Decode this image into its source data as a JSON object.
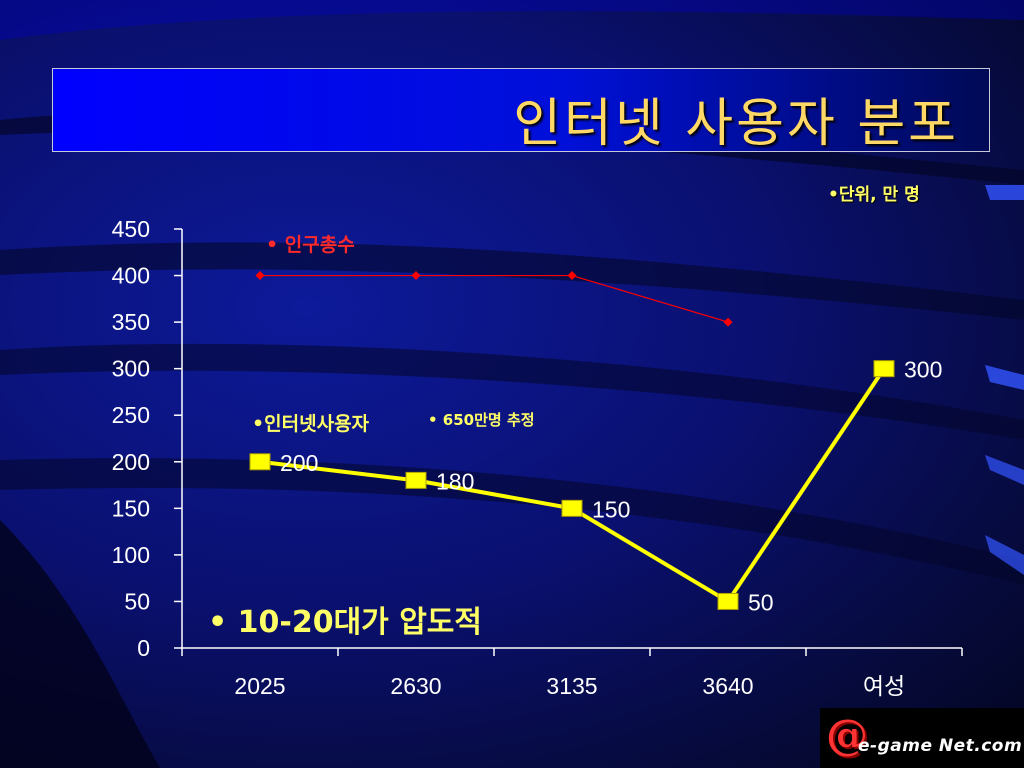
{
  "slide": {
    "title": "인터넷 사용자 분포",
    "unit_note": "•단위,  만 명",
    "logo_text": "e-game Net.com",
    "logo_symbol": "@",
    "colors": {
      "background": "#0a1070",
      "title_box": "#0000ff",
      "title_text": "#ffd866",
      "internet_line": "#ffff00",
      "population_line": "#ff0000",
      "annotation": "#ffff66"
    }
  },
  "chart_data": {
    "type": "line",
    "title": "",
    "xlabel": "",
    "ylabel": "",
    "categories": [
      "2025",
      "2630",
      "3135",
      "3640",
      "여성"
    ],
    "y_ticks": [
      0,
      50,
      100,
      150,
      200,
      250,
      300,
      350,
      400,
      450
    ],
    "ylim": [
      0,
      450
    ],
    "grid": false,
    "series": [
      {
        "name": "인구총수",
        "values": [
          400,
          400,
          400,
          350,
          null
        ],
        "color": "#ff0000",
        "marker": "diamond"
      },
      {
        "name": "인터넷사용자",
        "values": [
          200,
          180,
          150,
          50,
          300
        ],
        "data_labels": [
          "200",
          "180",
          "150",
          "50",
          "300"
        ],
        "color": "#ffff00",
        "marker": "square"
      }
    ],
    "annotations": {
      "population_label": "• 인구총수",
      "internet_label": "•인터넷사용자",
      "estimate_note": "•  650만명 추정",
      "highlight": "• 10-20대가 압도적"
    }
  }
}
